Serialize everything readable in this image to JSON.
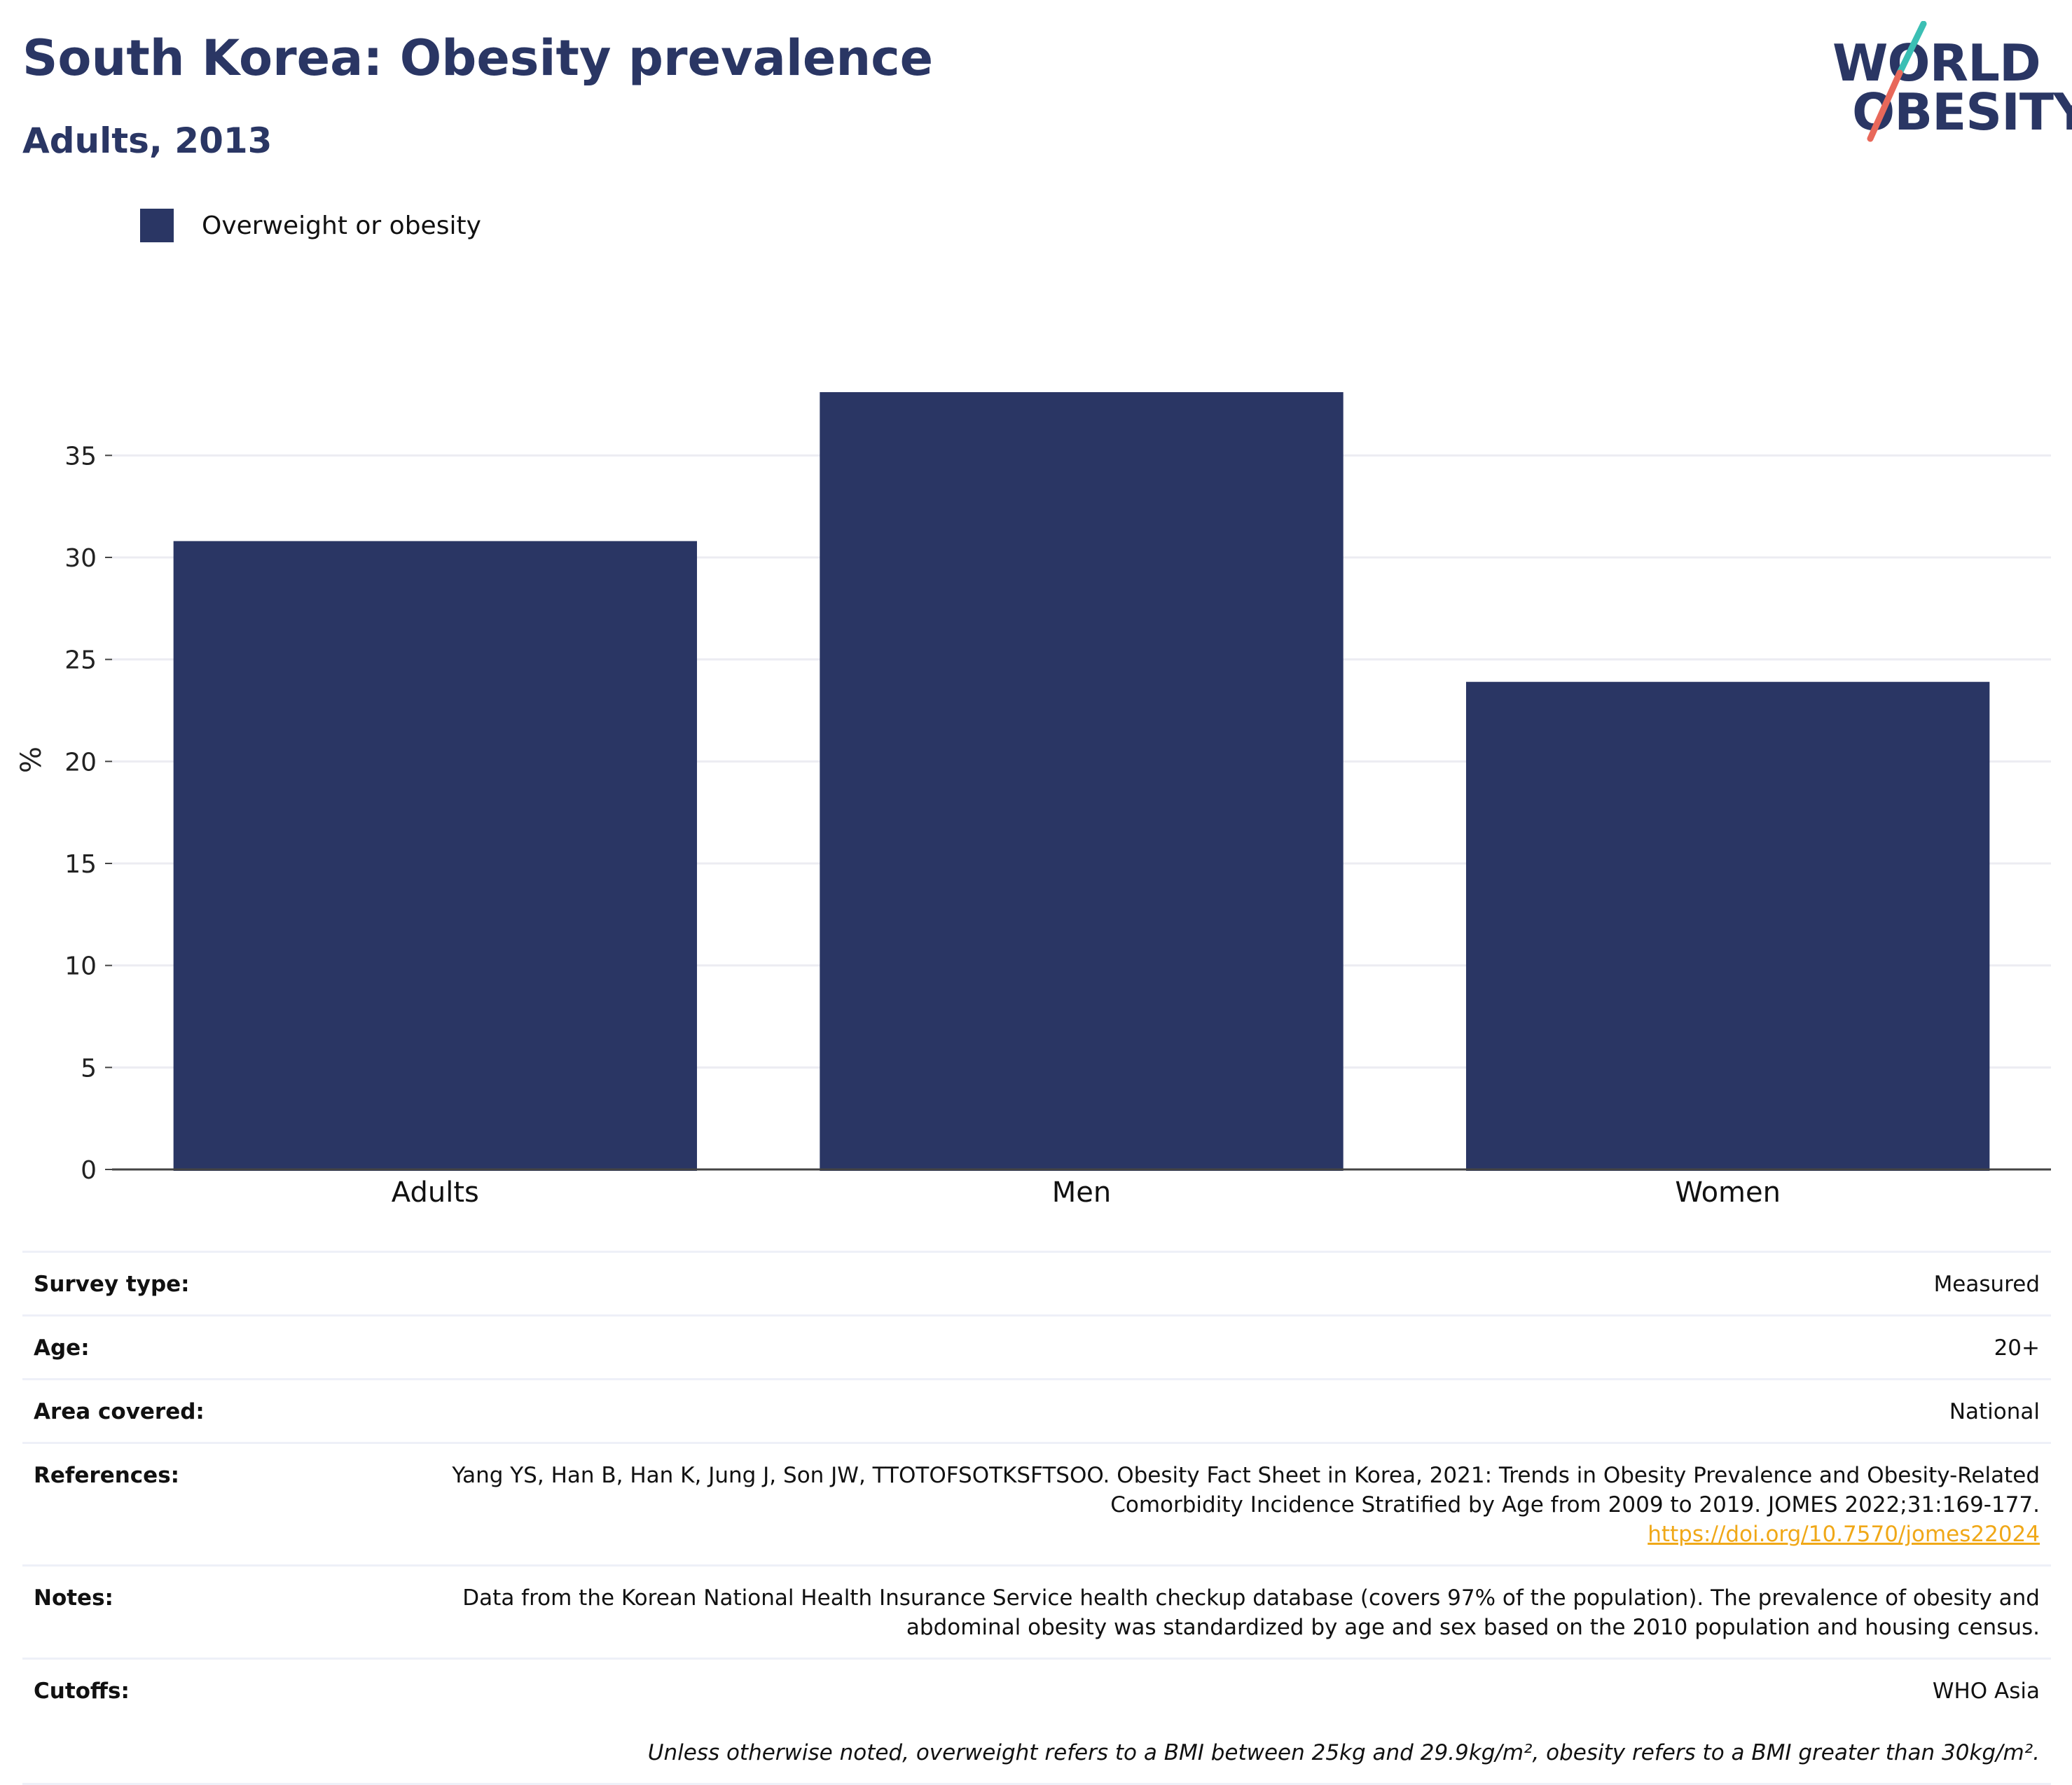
{
  "header": {
    "title": "South Korea: Obesity prevalence",
    "subtitle": "Adults, 2013"
  },
  "logo": {
    "line1": "WORLD",
    "line2": "OBESITY",
    "colors": {
      "text": "#2a3664",
      "slash_teal": "#3bbfb4",
      "slash_coral": "#e8685a"
    }
  },
  "legend": {
    "items": [
      {
        "label": "Overweight or obesity",
        "color": "#2a3664"
      }
    ]
  },
  "chart_data": {
    "type": "bar",
    "categories": [
      "Adults",
      "Men",
      "Women"
    ],
    "series": [
      {
        "name": "Overweight or obesity",
        "values": [
          30.8,
          38.1,
          23.9
        ],
        "color": "#2a3664"
      }
    ],
    "ylabel": "%",
    "xlabel": "",
    "ylim": [
      0,
      38.1
    ],
    "yticks": [
      0,
      5,
      10,
      15,
      20,
      25,
      30,
      35
    ],
    "grid": true,
    "legend_position": "top-left"
  },
  "meta": {
    "rows": [
      {
        "key": "Survey type:",
        "value": "Measured"
      },
      {
        "key": "Age:",
        "value": "20+"
      },
      {
        "key": "Area covered:",
        "value": "National"
      },
      {
        "key": "References:",
        "value": "Yang YS, Han B, Han K, Jung J, Son JW, TTOTOFSOTKSFTSOO. Obesity Fact Sheet in Korea, 2021: Trends in Obesity Prevalence and Obesity-Related Comorbidity Incidence Stratified by Age from 2009 to 2019. JOMES 2022;31:169-177.",
        "link": "https://doi.org/10.7570/jomes22024"
      },
      {
        "key": "Notes:",
        "value": "Data from the Korean National Health Insurance Service health checkup database (covers 97% of the population). The prevalence of obesity and abdominal obesity was standardized by age and sex based on the 2010 population and housing census."
      },
      {
        "key": "Cutoffs:",
        "value": "WHO Asia"
      }
    ],
    "footnote": "Unless otherwise noted, overweight refers to a BMI between 25kg and 29.9kg/m², obesity refers to a BMI greater than 30kg/m²."
  }
}
